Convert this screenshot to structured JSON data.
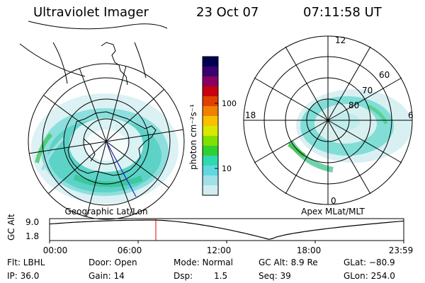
{
  "header": {
    "instrument": "Ultraviolet Imager",
    "date": "23 Oct 07",
    "time": "07:11:58 UT"
  },
  "panels": {
    "left_caption": "Geographic Lat/Lon",
    "right_caption": "Apex MLat/MLT",
    "mlt_labels": {
      "top": "12",
      "left": "18",
      "right": "6",
      "bottom": "0"
    },
    "mlat_labels": [
      "60",
      "70",
      "80"
    ]
  },
  "colorbar": {
    "unit_label": "photon cm⁻²s⁻¹",
    "tick_labels": [
      "100",
      "10"
    ],
    "colors": [
      "#000050",
      "#3a0070",
      "#8a0060",
      "#c80010",
      "#e04000",
      "#f08000",
      "#f8c000",
      "#d8e800",
      "#80e000",
      "#30d030",
      "#30d8b0",
      "#60d8e0",
      "#a0e0e8",
      "#d0eef0"
    ]
  },
  "altitude_plot": {
    "ylabel": "GC Alt",
    "ytick_labels": [
      "9.0",
      "1.8"
    ],
    "xtick_labels": [
      "00:00",
      "06:00",
      "12:00",
      "18:00",
      "23:59"
    ],
    "current_time_hours": 7.2,
    "marker_color": "#e00000"
  },
  "status": {
    "flt": "Flt: LBHL",
    "ip": "IP: 36.0",
    "door": "Door: Open",
    "gain": "Gain: 14",
    "mode": "Mode: Normal",
    "dsp_label": "Dsp:",
    "dsp_value": "1.5",
    "gc_alt": "GC Alt: 8.9 Re",
    "seq": "Seq: 39",
    "glat": "GLat: −80.9",
    "glon": "GLon: 254.0"
  }
}
